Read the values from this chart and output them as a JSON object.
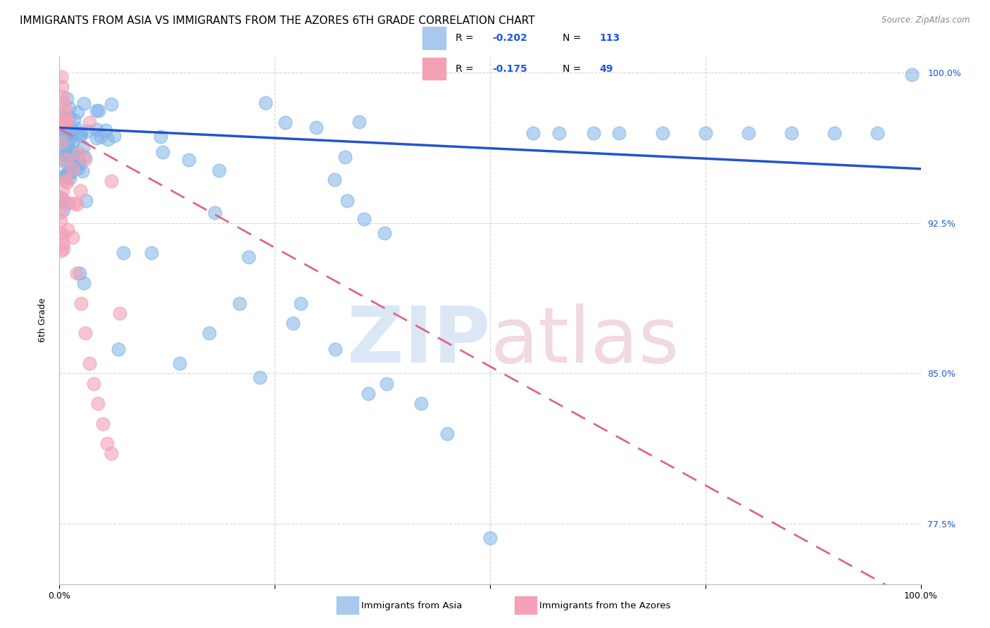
{
  "title": "IMMIGRANTS FROM ASIA VS IMMIGRANTS FROM THE AZORES 6TH GRADE CORRELATION CHART",
  "source_text": "Source: ZipAtlas.com",
  "ylabel": "6th Grade",
  "x_min": 0.0,
  "x_max": 1.0,
  "y_min": 0.745,
  "y_max": 1.008,
  "y_tick_labels": [
    "77.5%",
    "85.0%",
    "92.5%",
    "100.0%"
  ],
  "y_tick_values": [
    0.775,
    0.85,
    0.925,
    1.0
  ],
  "blue_R": -0.202,
  "blue_N": 113,
  "pink_R": -0.175,
  "pink_N": 49,
  "blue_scatter_color": "#7fb3e8",
  "pink_scatter_color": "#f4a0b5",
  "blue_line_color": "#2255cc",
  "pink_line_color": "#dd6688",
  "background_color": "#ffffff",
  "grid_color": "#cccccc",
  "title_fontsize": 11,
  "axis_label_fontsize": 9,
  "tick_label_fontsize": 9,
  "blue_line_y_start": 0.9725,
  "blue_line_y_end": 0.952,
  "pink_line_y_start": 0.972,
  "pink_line_y_end": 0.735,
  "legend_R_color": "#1a56db",
  "legend_N_color": "#1a56db"
}
